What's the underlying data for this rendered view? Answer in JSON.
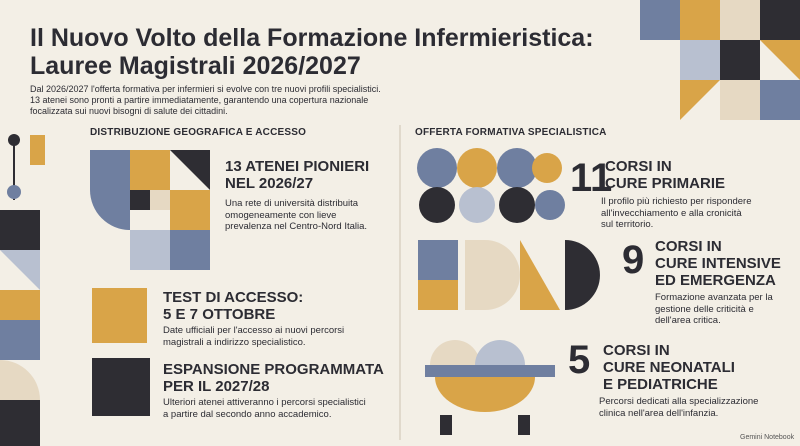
{
  "header": {
    "title_lines": [
      "Il Nuovo Volto della Formazione Infermieristica:",
      "Lauree Magistrali 2026/2027"
    ],
    "subtitle_lines": [
      "Dal 2026/2027 l'offerta formativa per infermieri si evolve con tre nuovi profili specialistici.",
      "13 atenei sono pronti a partire immediatamente, garantendo una copertura nazionale",
      "focalizzata sui nuovi bisogni di salute dei cittadini."
    ]
  },
  "left_section": {
    "heading": "DISTRIBUZIONE GEOGRAFICA E ACCESSO",
    "items": [
      {
        "title_lines": [
          "13 ATENEI PIONIERI",
          "NEL 2026/27"
        ],
        "description_lines": [
          "Una rete di università distribuita",
          "omogeneamente con lieve",
          "prevalenza nel Centro-Nord Italia."
        ]
      },
      {
        "title_lines": [
          "TEST DI ACCESSO:",
          "5 E 7 OTTOBRE"
        ],
        "description_lines": [
          "Date ufficiali per l'accesso ai nuovi percorsi",
          "magistrali a indirizzo specialistico."
        ]
      },
      {
        "title_lines": [
          "ESPANSIONE PROGRAMMATA",
          "PER IL 2027/28"
        ],
        "description_lines": [
          "Ulteriori atenei attiveranno i percorsi specialistici",
          "a partire dal secondo anno accademico."
        ]
      }
    ]
  },
  "right_section": {
    "heading": "OFFERTA FORMATIVA SPECIALISTICA",
    "items": [
      {
        "number": "11",
        "title_lines": [
          "CORSI IN",
          "CURE PRIMARIE"
        ],
        "description_lines": [
          "Il profilo più richiesto per rispondere",
          "all'invecchiamento e alla cronicità",
          "sul territorio."
        ]
      },
      {
        "number": "9",
        "title_lines": [
          "CORSI IN",
          "CURE INTENSIVE",
          "ED EMERGENZA"
        ],
        "description_lines": [
          "Formazione avanzata per la",
          "gestione delle criticità e",
          "dell'area critica."
        ]
      },
      {
        "number": "5",
        "title_lines": [
          "CORSI IN",
          "CURE NEONATALI",
          "E PEDIATRICHE"
        ],
        "description_lines": [
          "Percorsi dedicati alla specializzazione",
          "clinica nell'area dell'infanzia."
        ]
      }
    ]
  },
  "footer": "Gemini Notebook"
}
